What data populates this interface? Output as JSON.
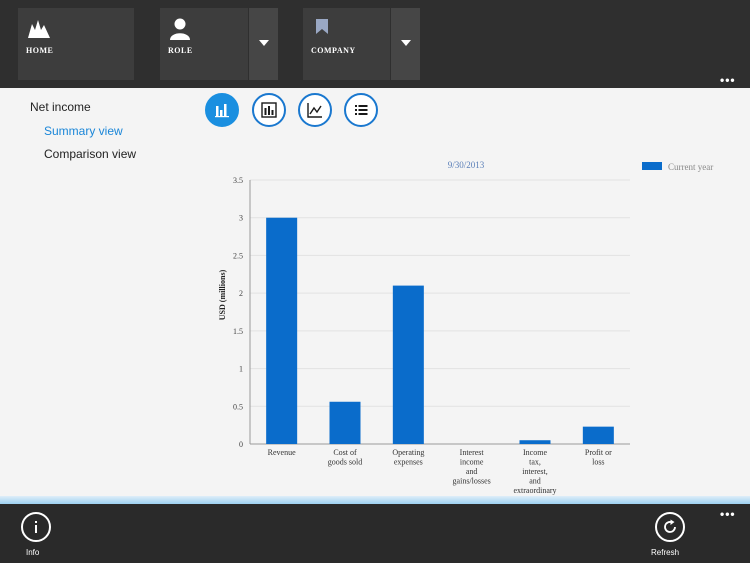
{
  "nav": {
    "home_label": "HOME",
    "role_label": "ROLE",
    "company_label": "COMPANY",
    "more_label": "•••"
  },
  "sidebar": {
    "items": [
      {
        "label": "Net income"
      },
      {
        "label": "Summary view"
      },
      {
        "label": "Comparison view"
      }
    ]
  },
  "view_buttons": [
    {
      "icon": "bar-chart-icon",
      "active": true
    },
    {
      "icon": "table-chart-icon",
      "active": false
    },
    {
      "icon": "line-chart-icon",
      "active": false
    },
    {
      "icon": "list-icon",
      "active": false
    }
  ],
  "chart_data": {
    "type": "bar",
    "title": "9/30/2013",
    "ylabel": "USD (millions)",
    "xlabel": "",
    "ylim": [
      0,
      3.5
    ],
    "yticks": [
      0,
      0.5,
      1,
      1.5,
      2,
      2.5,
      3,
      3.5
    ],
    "yticklabels": [
      "0",
      "0.5",
      "1",
      "1.5",
      "2",
      "2.5",
      "3",
      "3.5"
    ],
    "grid": true,
    "legend_position": "top-right",
    "categories": [
      [
        "Revenue"
      ],
      [
        "Cost of",
        "goods sold"
      ],
      [
        "Operating",
        "expenses"
      ],
      [
        "Interest",
        "income",
        "and",
        "gains/losses"
      ],
      [
        "Income",
        "tax,",
        "interest,",
        "and",
        "extraordinary"
      ],
      [
        "Profit or",
        "loss"
      ]
    ],
    "series": [
      {
        "name": "Current year",
        "color": "#0a6ccb",
        "values": [
          3.0,
          0.56,
          2.1,
          0.0,
          0.05,
          0.23
        ]
      }
    ]
  },
  "appbar": {
    "info_label": "Info",
    "refresh_label": "Refresh",
    "more_label": "•••"
  },
  "colors": {
    "accent": "#1a8fe0",
    "bar": "#0a6ccb",
    "topbar": "#2f2f2f",
    "appbar": "#2a2a2a"
  }
}
